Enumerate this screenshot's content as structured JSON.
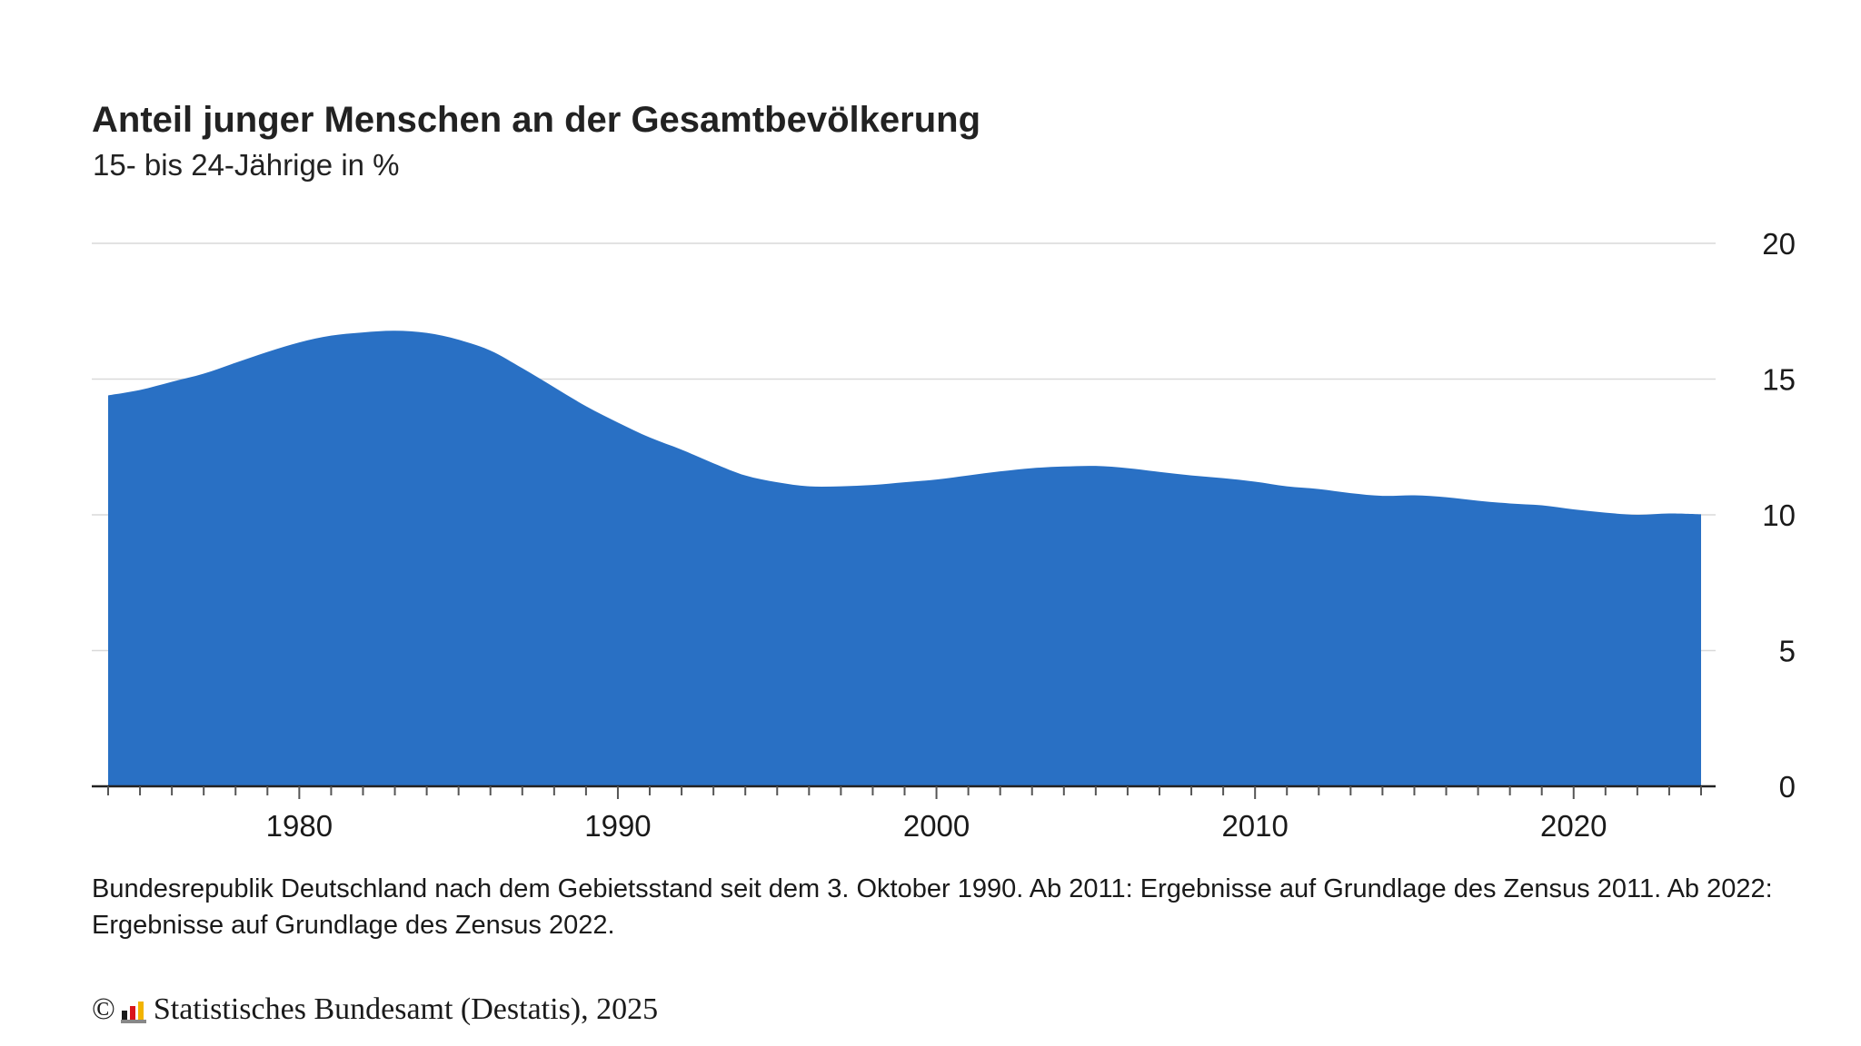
{
  "title": "Anteil junger Menschen an der Gesamtbevölkerung",
  "subtitle": "15- bis 24-Jährige in %",
  "note": "Bundesrepublik Deutschland nach dem Gebietsstand seit dem 3. Oktober 1990. Ab 2011: Ergebnisse auf Grundlage des Zensus 2011. Ab 2022: Ergebnisse auf Grundlage des Zensus 2022.",
  "footer": {
    "copyright_symbol": "©",
    "source": "Statistisches Bundesamt (Destatis), 2025",
    "logo": "destatis-logo-icon"
  },
  "colors": {
    "area": "#2970C4",
    "grid": "#d9d9d9",
    "axis": "#222222"
  },
  "chart_data": {
    "type": "area",
    "title": "Anteil junger Menschen an der Gesamtbevölkerung",
    "subtitle": "15- bis 24-Jährige in %",
    "xlabel": "",
    "ylabel": "",
    "xlim": [
      1974,
      2024
    ],
    "ylim": [
      0,
      20
    ],
    "x_ticks": [
      1980,
      1990,
      2000,
      2010,
      2020
    ],
    "y_ticks": [
      0,
      5,
      10,
      15,
      20
    ],
    "y_axis_position": "right",
    "grid": true,
    "legend": "none",
    "series": [
      {
        "x": [
          1974,
          1975,
          1976,
          1977,
          1978,
          1979,
          1980,
          1981,
          1982,
          1983,
          1984,
          1985,
          1986,
          1987,
          1988,
          1989,
          1990,
          1991,
          1992,
          1993,
          1994,
          1995,
          1996,
          1997,
          1998,
          1999,
          2000,
          2001,
          2002,
          2003,
          2004,
          2005,
          2006,
          2007,
          2008,
          2009,
          2010,
          2011,
          2012,
          2013,
          2014,
          2015,
          2016,
          2017,
          2018,
          2019,
          2020,
          2021,
          2022,
          2023,
          2024
        ],
        "values": [
          14.4,
          14.6,
          14.9,
          15.2,
          15.6,
          16.0,
          16.35,
          16.6,
          16.72,
          16.78,
          16.7,
          16.45,
          16.05,
          15.4,
          14.7,
          14.0,
          13.4,
          12.85,
          12.4,
          11.9,
          11.45,
          11.2,
          11.05,
          11.05,
          11.1,
          11.2,
          11.3,
          11.45,
          11.6,
          11.72,
          11.78,
          11.8,
          11.72,
          11.58,
          11.45,
          11.35,
          11.22,
          11.05,
          10.95,
          10.8,
          10.7,
          10.72,
          10.65,
          10.52,
          10.42,
          10.35,
          10.2,
          10.08,
          10.0,
          10.05,
          10.02
        ]
      }
    ]
  }
}
